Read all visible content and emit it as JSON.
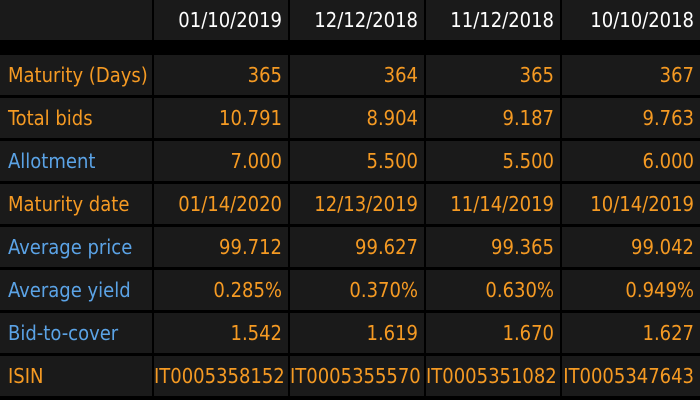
{
  "colors": {
    "background": "#000000",
    "cell": "#1a1a1a",
    "header_text": "#ffffff",
    "value_text": "#f59a23",
    "label_orange": "#f59a23",
    "label_blue": "#5ba3e6"
  },
  "table": {
    "header_blank": "",
    "dates": [
      "01/10/2019",
      "12/12/2018",
      "11/12/2018",
      "10/10/2018"
    ],
    "rows": [
      {
        "label": "Maturity (Days)",
        "label_color": "orange",
        "values": [
          "365",
          "364",
          "365",
          "367"
        ]
      },
      {
        "label": "Total bids",
        "label_color": "orange",
        "values": [
          "10.791",
          "8.904",
          "9.187",
          "9.763"
        ]
      },
      {
        "label": "Allotment",
        "label_color": "blue",
        "values": [
          "7.000",
          "5.500",
          "5.500",
          "6.000"
        ]
      },
      {
        "label": "Maturity date",
        "label_color": "orange",
        "values": [
          "01/14/2020",
          "12/13/2019",
          "11/14/2019",
          "10/14/2019"
        ]
      },
      {
        "label": "Average price",
        "label_color": "blue",
        "values": [
          "99.712",
          "99.627",
          "99.365",
          "99.042"
        ]
      },
      {
        "label": "Average yield",
        "label_color": "blue",
        "values": [
          "0.285%",
          "0.370%",
          "0.630%",
          "0.949%"
        ]
      },
      {
        "label": "Bid-to-cover",
        "label_color": "blue",
        "values": [
          "1.542",
          "1.619",
          "1.670",
          "1.627"
        ]
      },
      {
        "label": "ISIN",
        "label_color": "orange",
        "values": [
          "IT0005358152",
          "IT0005355570",
          "IT0005351082",
          "IT0005347643"
        ]
      }
    ]
  }
}
